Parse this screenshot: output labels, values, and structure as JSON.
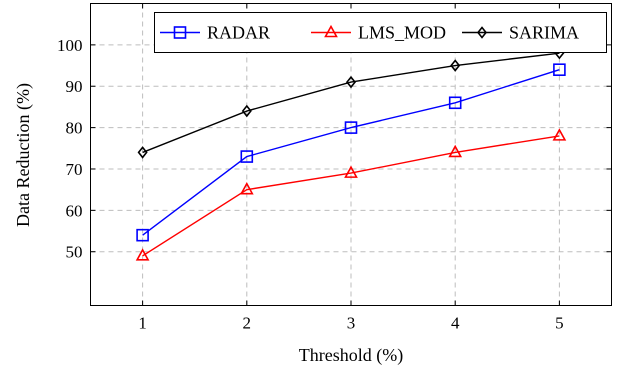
{
  "chart_data": {
    "type": "line",
    "x": [
      1,
      2,
      3,
      4,
      5
    ],
    "xlabel": "Threshold (%)",
    "ylabel": "Data Reduction (%)",
    "xlim": [
      0.5,
      5.5
    ],
    "ylim": [
      37,
      110
    ],
    "xticks": [
      1,
      2,
      3,
      4,
      5
    ],
    "yticks": [
      50,
      60,
      70,
      80,
      90,
      100
    ],
    "grid": true,
    "legend_position": "top-right",
    "series": [
      {
        "name": "RADAR",
        "values": [
          54,
          73,
          80,
          86,
          94
        ],
        "color": "#0000ff",
        "marker": "square"
      },
      {
        "name": "LMS_MOD",
        "values": [
          49,
          65,
          69,
          74,
          78
        ],
        "color": "#ff0000",
        "marker": "triangle"
      },
      {
        "name": "SARIMA",
        "values": [
          74,
          84,
          91,
          95,
          98
        ],
        "color": "#000000",
        "marker": "diamond"
      }
    ]
  }
}
